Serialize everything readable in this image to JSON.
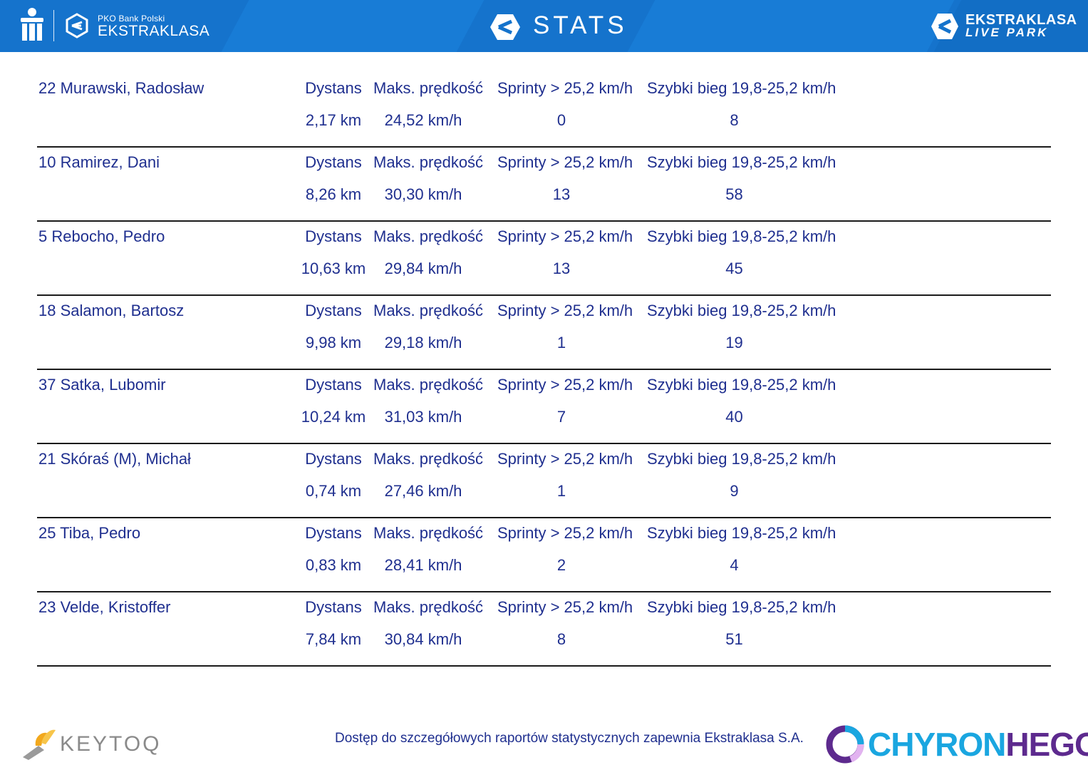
{
  "header": {
    "bank_small": "PKO Bank Polski",
    "bank_big": "EKSTRAKLASA",
    "title": "STATS",
    "park_line1": "EKSTRAKLASA",
    "park_line2": "LIVE PARK",
    "colors": {
      "bar": "#1573cc",
      "text": "#ffffff"
    }
  },
  "labels": {
    "distance": "Dystans",
    "max_speed": "Maks. prędkość",
    "sprints": "Sprinty > 25,2 km/h",
    "fast_run": "Szybki bieg 19,8-25,2 km/h"
  },
  "players": [
    {
      "name": "22  Murawski, Radosław",
      "distance": "2,17 km",
      "max_speed": "24,52 km/h",
      "sprints": "0",
      "fast_run": "8"
    },
    {
      "name": "10  Ramirez, Dani",
      "distance": "8,26 km",
      "max_speed": "30,30 km/h",
      "sprints": "13",
      "fast_run": "58"
    },
    {
      "name": "5  Rebocho, Pedro",
      "distance": "10,63 km",
      "max_speed": "29,84 km/h",
      "sprints": "13",
      "fast_run": "45"
    },
    {
      "name": "18  Salamon, Bartosz",
      "distance": "9,98 km",
      "max_speed": "29,18 km/h",
      "sprints": "1",
      "fast_run": "19"
    },
    {
      "name": "37  Satka, Lubomir",
      "distance": "10,24 km",
      "max_speed": "31,03 km/h",
      "sprints": "7",
      "fast_run": "40"
    },
    {
      "name": "21  Skóraś (M), Michał",
      "distance": "0,74 km",
      "max_speed": "27,46 km/h",
      "sprints": "1",
      "fast_run": "9"
    },
    {
      "name": "25  Tiba, Pedro",
      "distance": "0,83 km",
      "max_speed": "28,41 km/h",
      "sprints": "2",
      "fast_run": "4"
    },
    {
      "name": "23  Velde, Kristoffer",
      "distance": "7,84 km",
      "max_speed": "30,84 km/h",
      "sprints": "8",
      "fast_run": "51"
    }
  ],
  "footer": {
    "keytoq": "KEYTOQ",
    "note": "Dostęp do szczegółowych raportów statystycznych zapewnia Ekstraklasa S.A.",
    "chyron_a": "CHYRON",
    "chyron_b": "HEGO",
    "colors": {
      "text": "#1f2f8f",
      "chyron_a": "#1aa6e0",
      "chyron_b": "#5d2a8e"
    }
  },
  "icons": [
    "pko-bank-icon",
    "ekstraklasa-logo-icon",
    "stats-logo-icon",
    "live-park-logo-icon",
    "keytoq-logo-icon",
    "chyronhego-logo-icon"
  ]
}
